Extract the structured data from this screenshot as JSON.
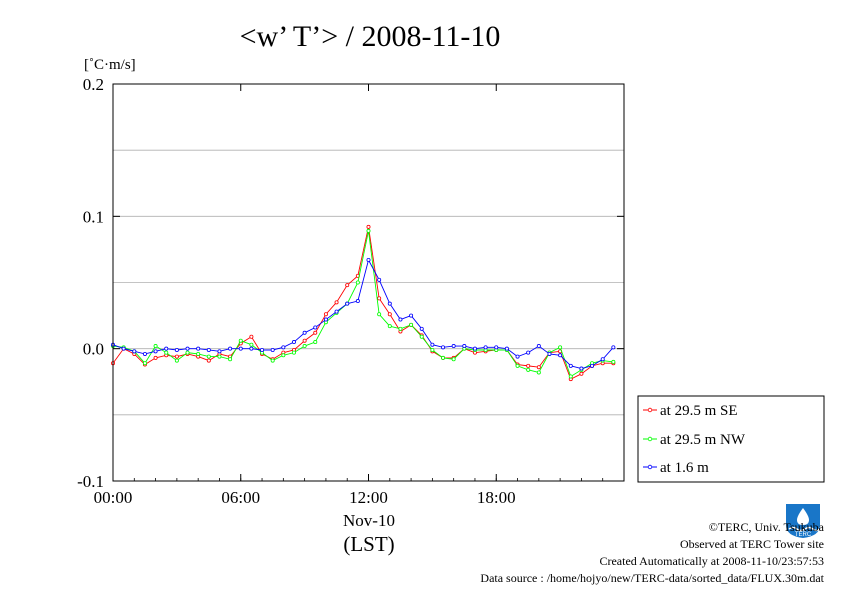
{
  "title": "<w’ T’> / 2008-11-10",
  "unit_label": "[˚C·m/s]",
  "xlabel_date": "Nov-10",
  "xlabel": "(LST)",
  "legend": [
    {
      "label": "at 29.5 m SE",
      "color": "#ff0000"
    },
    {
      "label": "at 29.5 m NW",
      "color": "#00ff00"
    },
    {
      "label": "at 1.6 m",
      "color": "#0000ff"
    }
  ],
  "footer": {
    "copyright": "©TERC, Univ. Tsukuba",
    "observed": "Observed at TERC Tower site",
    "created": "Created Automatically at 2008-11-10/23:57:53",
    "source": "Data source : /home/hojyo/new/TERC-data/sorted_data/FLUX.30m.dat"
  },
  "logo_text": "TERC",
  "chart_data": {
    "type": "line",
    "title": "<w’ T’> / 2008-11-10",
    "ylabel": "[˚C·m/s]",
    "xlabel": "Nov-10 (LST)",
    "xlim": [
      0,
      24
    ],
    "ylim": [
      -0.1,
      0.2
    ],
    "x_ticks": [
      0,
      6,
      12,
      18
    ],
    "x_tick_labels": [
      "00:00",
      "06:00",
      "12:00",
      "18:00"
    ],
    "y_ticks": [
      -0.1,
      0.0,
      0.1,
      0.2
    ],
    "y_tick_labels": [
      "-0.1",
      "0.0",
      "0.1",
      "0.2"
    ],
    "grid_y": [
      -0.05,
      0.05,
      0.1,
      0.15
    ],
    "legend_position": "right",
    "x": [
      0,
      0.5,
      1,
      1.5,
      2,
      2.5,
      3,
      3.5,
      4,
      4.5,
      5,
      5.5,
      6,
      6.5,
      7,
      7.5,
      8,
      8.5,
      9,
      9.5,
      10,
      10.5,
      11,
      11.5,
      12,
      12.5,
      13,
      13.5,
      14,
      14.5,
      15,
      15.5,
      16,
      16.5,
      17,
      17.5,
      18,
      18.5,
      19,
      19.5,
      20,
      20.5,
      21,
      21.5,
      22,
      22.5,
      23,
      23.5
    ],
    "series": [
      {
        "name": "at 29.5 m SE",
        "color": "#ff0000",
        "values": [
          -0.011,
          0.0,
          -0.004,
          -0.012,
          -0.007,
          -0.005,
          -0.006,
          -0.004,
          -0.006,
          -0.009,
          -0.004,
          -0.006,
          0.004,
          0.009,
          -0.004,
          -0.008,
          -0.003,
          -0.001,
          0.006,
          0.012,
          0.026,
          0.035,
          0.048,
          0.055,
          0.092,
          0.038,
          0.026,
          0.013,
          0.018,
          0.01,
          -0.002,
          -0.007,
          -0.007,
          0.0,
          -0.003,
          -0.002,
          -0.001,
          -0.001,
          -0.012,
          -0.013,
          -0.014,
          -0.003,
          -0.002,
          -0.023,
          -0.019,
          -0.013,
          -0.011,
          -0.011
        ]
      },
      {
        "name": "at 29.5 m NW",
        "color": "#00ff00",
        "values": [
          0.002,
          0.001,
          -0.002,
          -0.011,
          0.002,
          -0.003,
          -0.009,
          -0.003,
          -0.004,
          -0.006,
          -0.006,
          -0.008,
          0.006,
          0.003,
          -0.003,
          -0.009,
          -0.005,
          -0.003,
          0.002,
          0.005,
          0.02,
          0.027,
          0.034,
          0.05,
          0.089,
          0.026,
          0.017,
          0.015,
          0.018,
          0.009,
          -0.001,
          -0.007,
          -0.008,
          0.0,
          -0.001,
          -0.001,
          -0.001,
          -0.001,
          -0.013,
          -0.016,
          -0.018,
          -0.003,
          0.001,
          -0.021,
          -0.016,
          -0.011,
          -0.009,
          -0.01
        ]
      },
      {
        "name": "at 1.6 m",
        "color": "#0000ff",
        "values": [
          0.003,
          0.0,
          -0.002,
          -0.004,
          -0.002,
          0.0,
          -0.001,
          0.0,
          0.0,
          -0.001,
          -0.002,
          0.0,
          0.0,
          0.0,
          -0.001,
          -0.001,
          0.001,
          0.005,
          0.012,
          0.016,
          0.022,
          0.028,
          0.034,
          0.036,
          0.067,
          0.052,
          0.034,
          0.022,
          0.025,
          0.015,
          0.003,
          0.001,
          0.002,
          0.002,
          0.0,
          0.001,
          0.001,
          0.0,
          -0.006,
          -0.003,
          0.002,
          -0.004,
          -0.005,
          -0.013,
          -0.015,
          -0.013,
          -0.008,
          0.001
        ]
      }
    ]
  }
}
